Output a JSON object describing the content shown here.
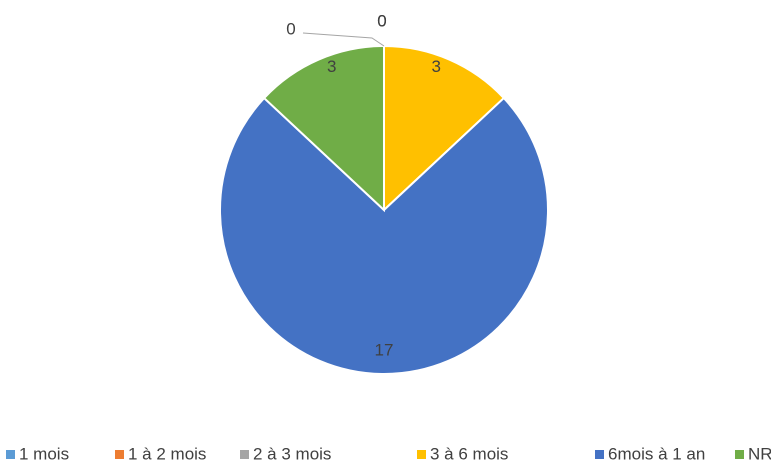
{
  "chart_data": {
    "type": "pie",
    "categories": [
      "1 mois",
      "1 à 2 mois",
      "2 à 3 mois",
      "3 à 6 mois",
      "6mois à 1 an",
      "NR"
    ],
    "values": [
      0,
      0,
      0,
      3,
      17,
      3
    ],
    "colors": [
      "#5b9bd5",
      "#ed7d31",
      "#a5a5a5",
      "#ffc000",
      "#4472c4",
      "#70ad47"
    ],
    "legend": "bottom"
  }
}
